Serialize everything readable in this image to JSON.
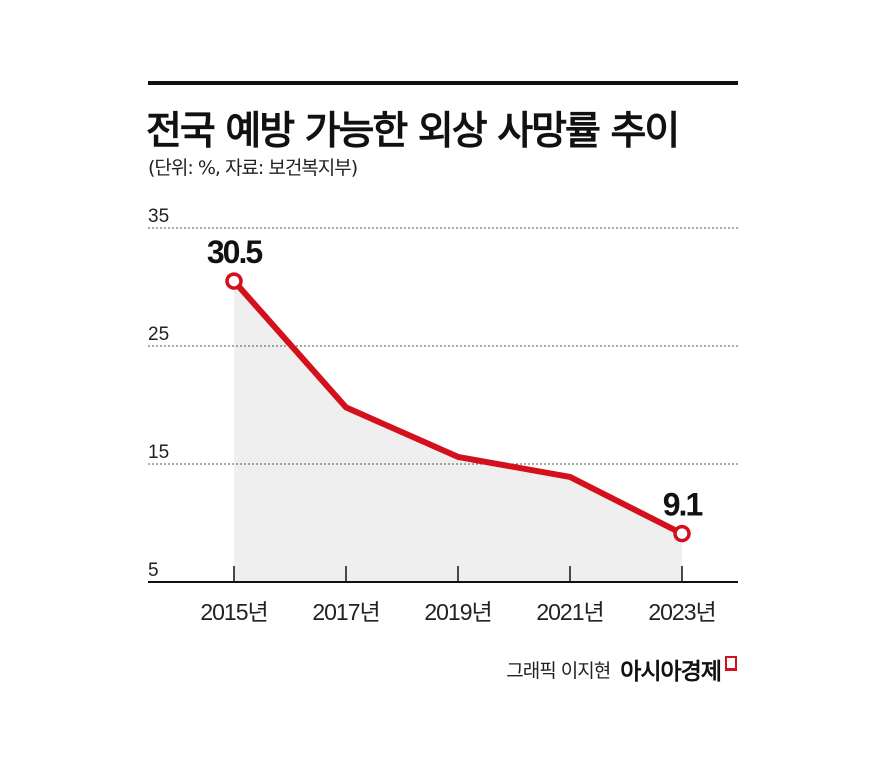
{
  "title": "전국 예방 가능한 외상 사망률 추이",
  "subtitle": "(단위: %, 자료: 보건복지부)",
  "credit": {
    "author": "그래픽 이지현",
    "brand": "아시아경제"
  },
  "colors": {
    "line": "#d4101e",
    "area": "#efefef",
    "text": "#111111"
  },
  "chart_data": {
    "type": "area",
    "title": "전국 예방 가능한 외상 사망률 추이",
    "xlabel": "",
    "ylabel": "%",
    "categories": [
      "2015년",
      "2017년",
      "2019년",
      "2021년",
      "2023년"
    ],
    "values": [
      30.5,
      19.8,
      15.6,
      13.9,
      9.1
    ],
    "data_labels": [
      "30.5",
      "",
      "",
      "",
      "9.1"
    ],
    "yticks": [
      "35",
      "25",
      "15",
      "5"
    ],
    "ytick_values": [
      35,
      25,
      15,
      5
    ],
    "ylim": [
      5,
      35
    ],
    "grid": true
  }
}
